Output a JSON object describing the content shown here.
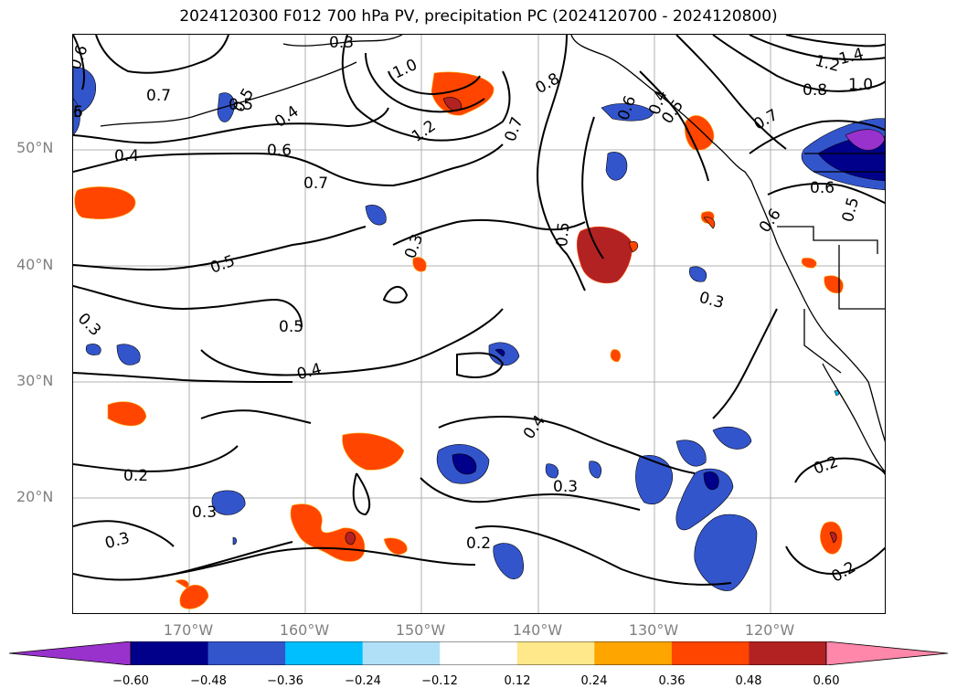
{
  "title": "2024120300 F012 700 hPa PV, precipitation PC (2024120700 - 2024120800)",
  "lat_labels": [
    "50°N",
    "40°N",
    "30°N",
    "20°N"
  ],
  "lon_labels": [
    "170°W",
    "160°W",
    "150°W",
    "140°W",
    "130°W",
    "120°W"
  ],
  "colorbar": {
    "ticks": [
      "−0.60",
      "−0.48",
      "−0.36",
      "−0.24",
      "−0.12",
      "0.12",
      "0.24",
      "0.36",
      "0.48",
      "0.60"
    ],
    "colors": [
      "#9932CC",
      "#00008B",
      "#3355CC",
      "#00BFFF",
      "#B0E0F8",
      "#FFFFFF",
      "#FFE88A",
      "#FFA500",
      "#FF4500",
      "#B22222",
      "#FF88AA"
    ]
  },
  "contour_labels": [
    "0.6",
    "6",
    "0.7",
    "0.4",
    "0.5",
    "0.3",
    "1.0",
    "1.2",
    "0.8",
    "0.5",
    "0.4",
    "0.6",
    "0.7",
    "0.3",
    "0.5",
    "0.5",
    "0.4",
    "0.3",
    "0.2",
    "0.3",
    "0.3",
    "0.4",
    "0.3",
    "0.2",
    "0.2",
    "0.2",
    "1.4",
    "1.2",
    "0.8",
    "1.0",
    "0.7",
    "0.6",
    "0.5",
    "0.6",
    "0.7",
    "0.5",
    "0.3",
    "0.4",
    "0.6",
    "0.5",
    "5"
  ]
}
